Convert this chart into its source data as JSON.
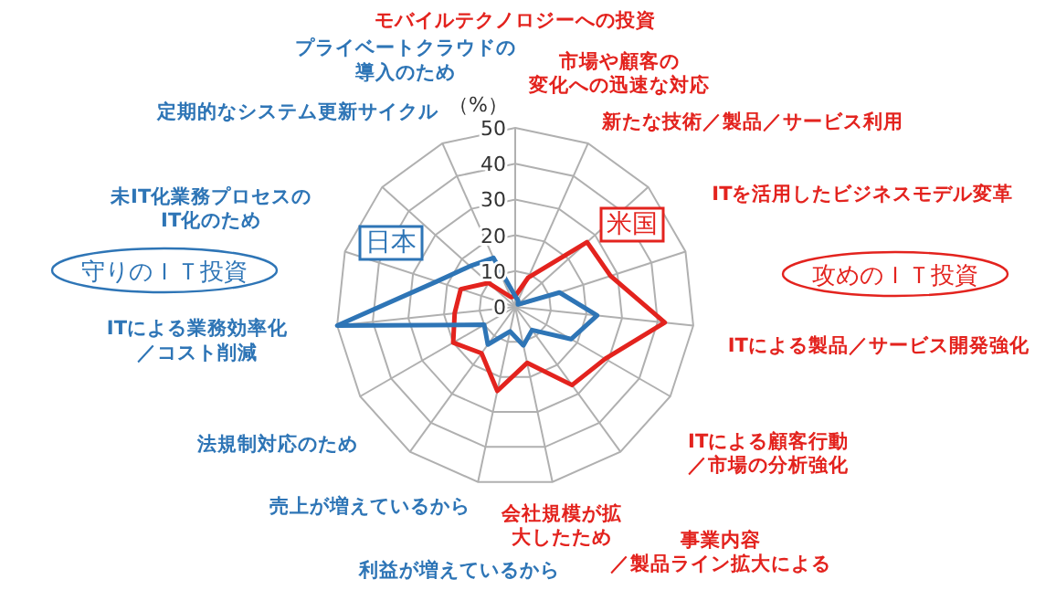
{
  "chart_data": {
    "type": "radar",
    "ylabel": "（%）",
    "ylim": [
      0,
      50
    ],
    "yticks": [
      0,
      10,
      20,
      30,
      40,
      50
    ],
    "grid": true,
    "categories": [
      "モバイルテクノロジーへの投資",
      "市場や顧客の変化への迅速な対応",
      "新たな技術／製品／サービス利用",
      "ITを活用したビジネスモデル変革",
      "ITによる製品／サービス開発強化",
      "ITによる顧客行動／市場の分析強化",
      "事業内容／製品ライン拡大による",
      "会社規模が拡大したため",
      "利益が増えているから",
      "売上が増えているから",
      "法規制対応のため",
      "ITによる業務効率化／コスト削減",
      "未IT化業務プロセスのIT化のため",
      "定期的なシステム更新サイクル",
      "プライベートクラウドの導入のため"
    ],
    "series": [
      {
        "name": "米国",
        "color": "#e3231e",
        "values": [
          3,
          9,
          27,
          28,
          42,
          29,
          27,
          16,
          24,
          16,
          20,
          17,
          16,
          10,
          3
        ]
      },
      {
        "name": "日本",
        "color": "#2e75b6",
        "values": [
          3,
          2,
          1,
          13,
          23,
          18,
          8,
          11,
          7,
          13,
          10,
          50,
          23,
          17,
          15
        ]
      }
    ],
    "annotations": [
      "守りのＩＴ投資",
      "攻めのＩＴ投資"
    ]
  }
}
